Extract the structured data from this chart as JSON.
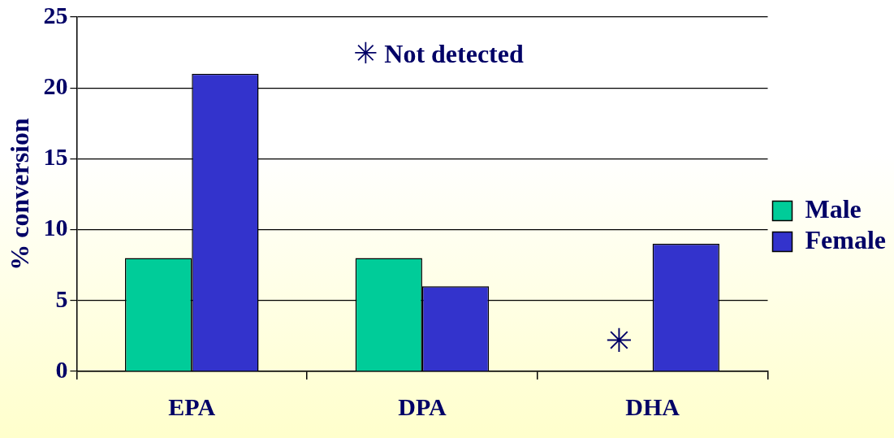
{
  "chart_data": {
    "type": "bar",
    "ylabel": "% conversion",
    "categories": [
      "EPA",
      "DPA",
      "DHA"
    ],
    "series": [
      {
        "name": "Male",
        "color": "#00cc99",
        "values": [
          8,
          8,
          null
        ]
      },
      {
        "name": "Female",
        "color": "#3333cc",
        "values": [
          21,
          6,
          9
        ]
      }
    ],
    "ylim": [
      0,
      25
    ],
    "yticks": [
      0,
      5,
      10,
      15,
      20,
      25
    ],
    "grid": "y",
    "legend": "right",
    "annotations": [
      "✳ Not detected",
      {
        "text": "✳",
        "x": "DHA",
        "y": 2
      }
    ]
  }
}
